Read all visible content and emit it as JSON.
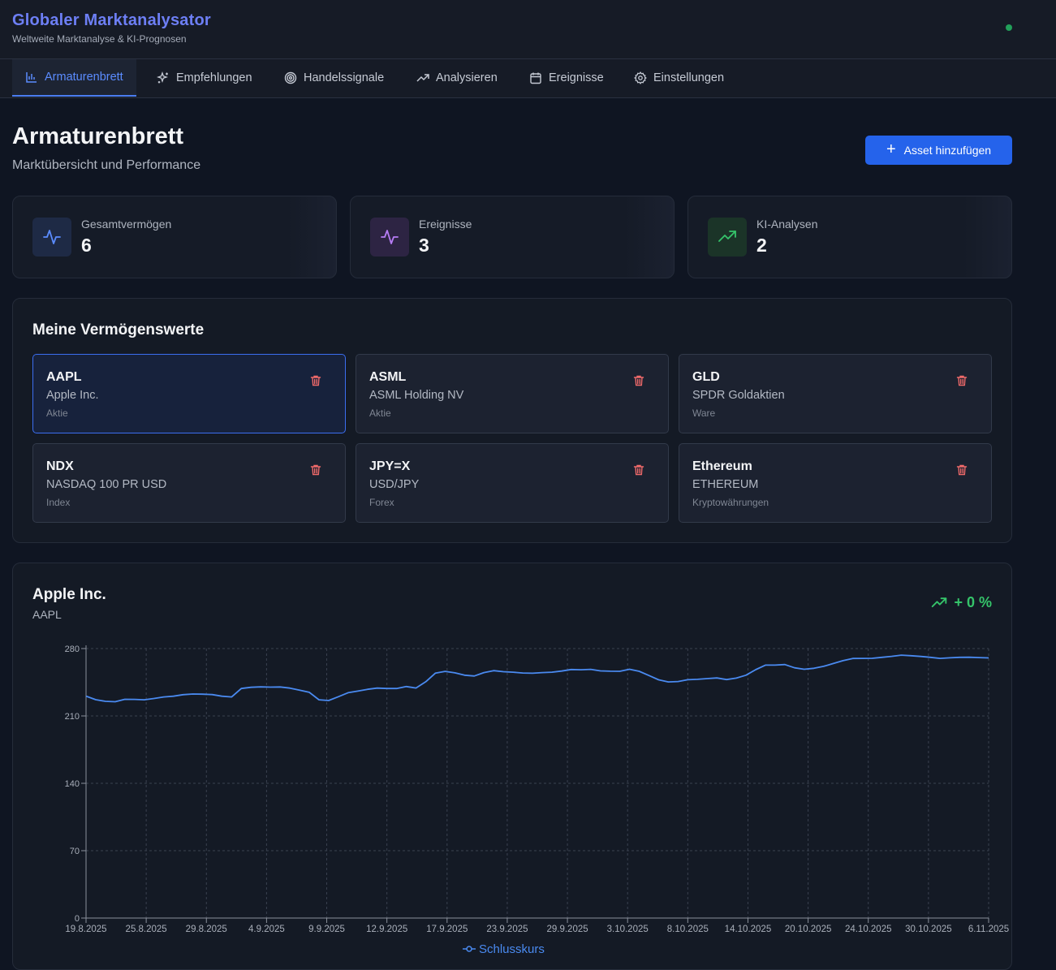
{
  "header": {
    "title": "Globaler Marktanalysator",
    "subtitle": "Weltweite Marktanalyse & KI-Prognosen"
  },
  "tabs": [
    {
      "label": "Armaturenbrett",
      "icon": "bar-chart-icon"
    },
    {
      "label": "Empfehlungen",
      "icon": "sparkles-icon"
    },
    {
      "label": "Handelssignale",
      "icon": "target-icon"
    },
    {
      "label": "Analysieren",
      "icon": "trending-up-icon"
    },
    {
      "label": "Ereignisse",
      "icon": "calendar-icon"
    },
    {
      "label": "Einstellungen",
      "icon": "gear-icon"
    }
  ],
  "page": {
    "title": "Armaturenbrett",
    "subtitle": "Marktübersicht und Performance",
    "add_button": "Asset hinzufügen"
  },
  "stats": [
    {
      "label": "Gesamtvermögen",
      "value": "6",
      "icon": "activity-icon",
      "color": "#5b8cff"
    },
    {
      "label": "Ereignisse",
      "value": "3",
      "icon": "activity-icon",
      "color": "#b67cf5"
    },
    {
      "label": "KI-Analysen",
      "value": "2",
      "icon": "trending-up-icon",
      "color": "#35c46a"
    }
  ],
  "assets": {
    "heading": "Meine Vermögenswerte",
    "items": [
      {
        "symbol": "AAPL",
        "name": "Apple Inc.",
        "type": "Aktie",
        "selected": true
      },
      {
        "symbol": "ASML",
        "name": "ASML Holding NV",
        "type": "Aktie"
      },
      {
        "symbol": "GLD",
        "name": "SPDR Goldaktien",
        "type": "Ware"
      },
      {
        "symbol": "NDX",
        "name": "NASDAQ 100 PR USD",
        "type": "Index"
      },
      {
        "symbol": "JPY=X",
        "name": "USD/JPY",
        "type": "Forex"
      },
      {
        "symbol": "Ethereum",
        "name": "ETHEREUM",
        "type": "Kryptowährungen"
      }
    ]
  },
  "chart_panel": {
    "title": "Apple Inc.",
    "symbol": "AAPL",
    "change": "+ 0 %"
  },
  "chart_data": {
    "type": "line",
    "ylim": [
      0,
      280
    ],
    "y_ticks": [
      "0",
      "70",
      "140",
      "210",
      "280"
    ],
    "x_ticks": [
      "19.8.2025",
      "25.8.2025",
      "29.8.2025",
      "4.9.2025",
      "9.9.2025",
      "12.9.2025",
      "17.9.2025",
      "23.9.2025",
      "29.9.2025",
      "3.10.2025",
      "8.10.2025",
      "14.10.2025",
      "20.10.2025",
      "24.10.2025",
      "30.10.2025",
      "6.11.2025"
    ],
    "grid": true,
    "legend": "bottom",
    "series": [
      {
        "name": "Schlusskurs",
        "color": "#4a8af0",
        "values": [
          230.6,
          226.9,
          225.2,
          224.8,
          227.3,
          227.2,
          226.8,
          228.1,
          229.7,
          230.5,
          232.1,
          232.8,
          232.6,
          232.2,
          230.5,
          229.7,
          238.5,
          239.8,
          240.2,
          239.9,
          240.1,
          238.9,
          236.8,
          234.5,
          226.8,
          226.0,
          230.0,
          234.1,
          235.8,
          237.7,
          238.9,
          238.5,
          238.5,
          240.5,
          239.0,
          245.5,
          254.5,
          256.3,
          254.8,
          252.3,
          251.5,
          255.0,
          257.1,
          256.0,
          255.5,
          254.6,
          254.4,
          255.0,
          255.5,
          256.6,
          258.2,
          258.0,
          258.4,
          256.8,
          256.5,
          256.4,
          258.5,
          256.4,
          252.0,
          247.5,
          245.3,
          245.8,
          247.6,
          248.0,
          248.8,
          249.5,
          247.8,
          249.3,
          252.3,
          258.1,
          262.8,
          262.8,
          263.4,
          260.0,
          258.5,
          259.5,
          261.5,
          264.5,
          267.4,
          269.7,
          269.8,
          269.9,
          270.9,
          271.9,
          273.2,
          272.6,
          271.8,
          270.9,
          269.8,
          270.4,
          270.9,
          271.0,
          270.6,
          270.3
        ]
      }
    ]
  }
}
